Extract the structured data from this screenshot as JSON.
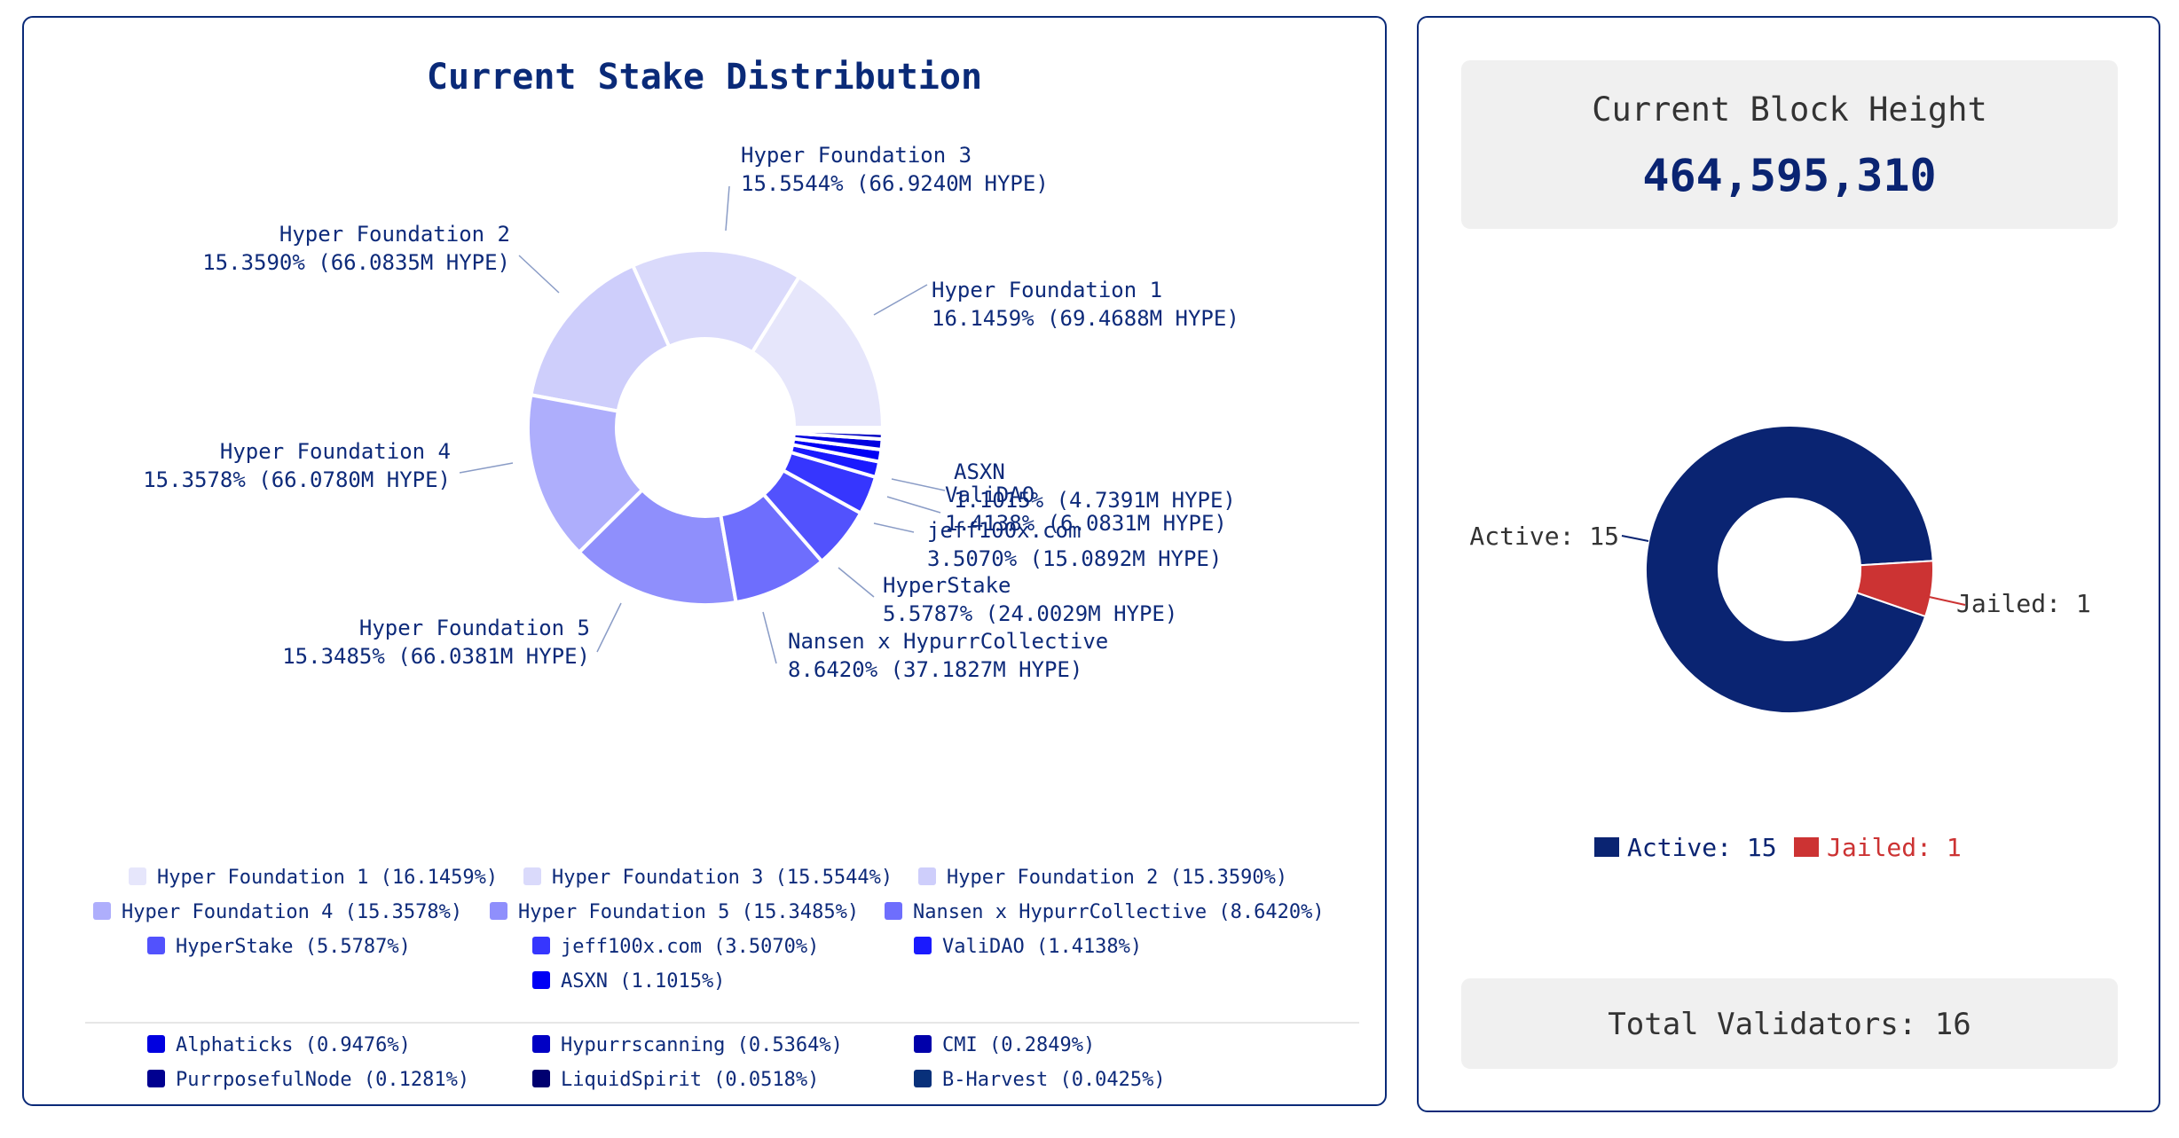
{
  "stake_panel": {
    "title": "Current Stake Distribution"
  },
  "block_panel": {
    "label": "Current Block Height",
    "value": "464,595,310"
  },
  "status_panel": {
    "total_validators_text": "Total Validators: 16"
  },
  "colors": {
    "navy": "#0a2472",
    "jailed_red": "#cc3333",
    "title": "#0a2a78"
  },
  "chart_data": [
    {
      "type": "pie",
      "variant": "donut",
      "title": "Current Stake Distribution",
      "unit": "HYPE",
      "slices": [
        {
          "name": "Hyper Foundation 1",
          "percent": 16.1459,
          "amount": "69.4688M",
          "color": "#e6e6fb",
          "label": "16.1459% (69.4688M HYPE)",
          "legend": "Hyper Foundation 1 (16.1459%)"
        },
        {
          "name": "Hyper Foundation 3",
          "percent": 15.5544,
          "amount": "66.9240M",
          "color": "#dadafb",
          "label": "15.5544% (66.9240M HYPE)",
          "legend": "Hyper Foundation 3 (15.5544%)"
        },
        {
          "name": "Hyper Foundation 2",
          "percent": 15.359,
          "amount": "66.0835M",
          "color": "#ceceFb",
          "label": "15.3590% (66.0835M HYPE)",
          "legend": "Hyper Foundation 2 (15.3590%)"
        },
        {
          "name": "Hyper Foundation 4",
          "percent": 15.3578,
          "amount": "66.0780M",
          "color": "#aeaefc",
          "label": "15.3578% (66.0780M HYPE)",
          "legend": "Hyper Foundation 4 (15.3578%)"
        },
        {
          "name": "Hyper Foundation 5",
          "percent": 15.3485,
          "amount": "66.0381M",
          "color": "#8f8ffc",
          "label": "15.3485% (66.0381M HYPE)",
          "legend": "Hyper Foundation 5 (15.3485%)"
        },
        {
          "name": "Nansen x HypurrCollective",
          "percent": 8.642,
          "amount": "37.1827M",
          "color": "#6e6efd",
          "label": "8.6420% (37.1827M HYPE)",
          "legend": "Nansen x HypurrCollective (8.6420%)"
        },
        {
          "name": "HyperStake",
          "percent": 5.5787,
          "amount": "24.0029M",
          "color": "#5252fd",
          "label": "5.5787% (24.0029M HYPE)",
          "legend": "HyperStake (5.5787%)"
        },
        {
          "name": "jeff100x.com",
          "percent": 3.507,
          "amount": "15.0892M",
          "color": "#3636fe",
          "label": "3.5070% (15.0892M HYPE)",
          "legend": "jeff100x.com (3.5070%)"
        },
        {
          "name": "ValiDAO",
          "percent": 1.4138,
          "amount": "6.0831M",
          "color": "#1a1afe",
          "label": "1.4138% (6.0831M HYPE)",
          "legend": "ValiDAO (1.4138%)"
        },
        {
          "name": "ASXN",
          "percent": 1.1015,
          "amount": "4.7391M",
          "color": "#0000f5",
          "label": "1.1015% (4.7391M HYPE)",
          "legend": "ASXN (1.1015%)"
        },
        {
          "name": "Alphaticks",
          "percent": 0.9476,
          "color": "#0000e0",
          "legend": "Alphaticks (0.9476%)"
        },
        {
          "name": "Hypurrscanning",
          "percent": 0.5364,
          "color": "#0000c4",
          "legend": "Hypurrscanning (0.5364%)"
        },
        {
          "name": "CMI",
          "percent": 0.2849,
          "color": "#0000aa",
          "legend": "CMI (0.2849%)"
        },
        {
          "name": "PurrposefulNode",
          "percent": 0.1281,
          "color": "#000090",
          "legend": "PurrposefulNode (0.1281%)"
        },
        {
          "name": "LiquidSpirit",
          "percent": 0.0518,
          "color": "#000070",
          "legend": "LiquidSpirit (0.0518%)"
        },
        {
          "name": "B-Harvest",
          "percent": 0.0425,
          "color": "#08307a",
          "legend": "B-Harvest (0.0425%)"
        }
      ]
    },
    {
      "type": "pie",
      "variant": "donut",
      "slices": [
        {
          "name": "Active",
          "value": 15,
          "color": "#0a2472",
          "label": "Active: 15"
        },
        {
          "name": "Jailed",
          "value": 1,
          "color": "#cc3333",
          "label": "Jailed: 1"
        }
      ],
      "legend": [
        "Active: 15",
        "Jailed: 1"
      ]
    }
  ]
}
